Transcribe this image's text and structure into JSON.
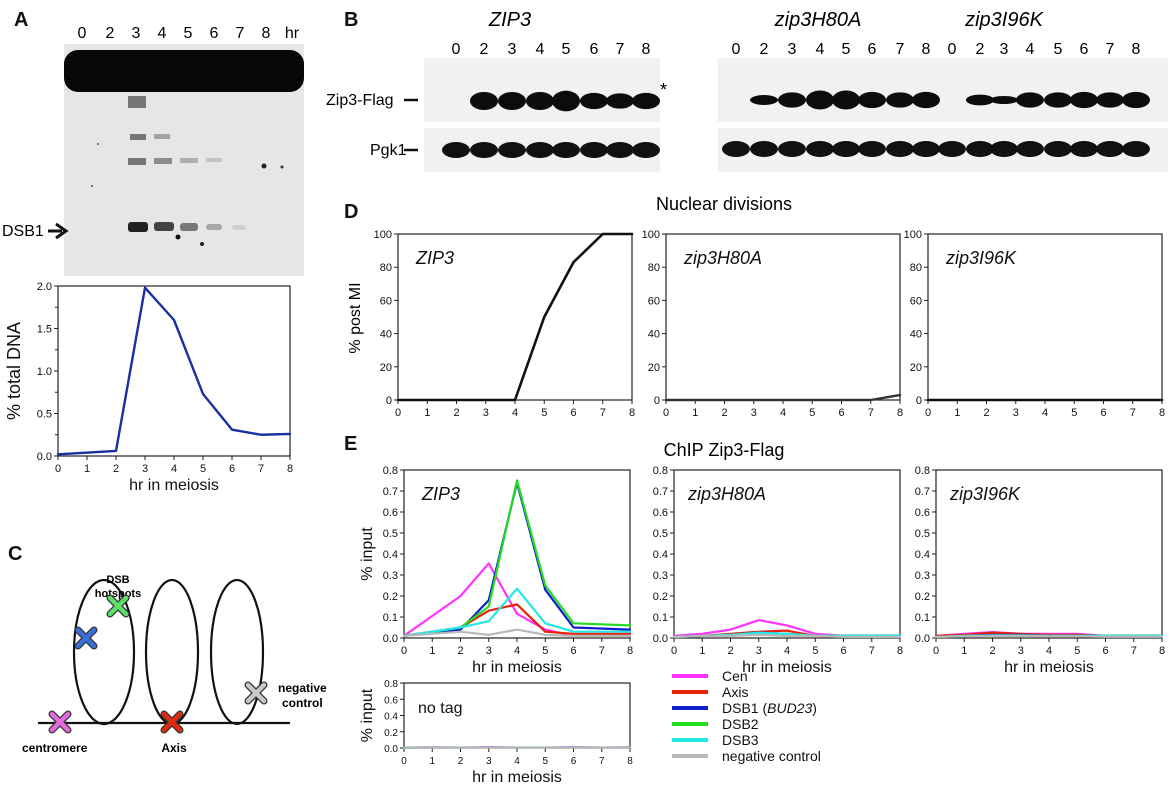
{
  "panels": {
    "A": {
      "label": "A",
      "gel_lanes": [
        "0",
        "2",
        "3",
        "4",
        "5",
        "6",
        "7",
        "8"
      ],
      "gel_unit": "hr",
      "dsb_label": "DSB1"
    },
    "B": {
      "label": "B",
      "blot_titles": [
        "ZIP3",
        "zip3H80A",
        "zip3I96K"
      ],
      "lanes_left": [
        "0",
        "2",
        "3",
        "4",
        "5",
        "6",
        "7",
        "8"
      ],
      "lanes_right": [
        "0",
        "2",
        "3",
        "4",
        "5",
        "6",
        "7",
        "8",
        "0",
        "2",
        "3",
        "4",
        "5",
        "6",
        "7",
        "8"
      ],
      "row1_label": "Zip3-Flag",
      "row2_label": "Pgk1",
      "star": "*"
    },
    "C": {
      "label": "C",
      "dsb_hotspots": [
        "DSB",
        "hotspots"
      ],
      "negative_control": [
        "negative",
        "control"
      ],
      "centromere": "centromere",
      "axis": "Axis",
      "colors": {
        "blue": "#3a6fd8",
        "green": "#5de06a",
        "magenta": "#e06ce0",
        "red": "#e02a10",
        "gray": "#c8c8c8"
      }
    },
    "D": {
      "label": "D",
      "title": "Nuclear divisions",
      "ylabel": "% post MI"
    },
    "E": {
      "label": "E",
      "title": "ChIP Zip3-Flag",
      "ylabel": "% input",
      "xlabel": "hr in meiosis",
      "legend": [
        {
          "name": "Cen",
          "color": "#ff33ff"
        },
        {
          "name": "Axis",
          "color": "#e8220a"
        },
        {
          "name": "DSB1",
          "name_italic": "BUD23",
          "color": "#1020c8"
        },
        {
          "name": "DSB2",
          "color": "#22dd22"
        },
        {
          "name": "DSB3",
          "color": "#22e8e8"
        },
        {
          "name": "negative control",
          "color": "#b8b8b8"
        }
      ]
    }
  },
  "chart_data": [
    {
      "id": "A-quant",
      "type": "line",
      "title": "",
      "xlabel": "hr in meiosis",
      "ylabel": "% total DNA",
      "xlim": [
        0,
        8
      ],
      "ylim": [
        0,
        2.0
      ],
      "xticks": [
        0,
        1,
        2,
        3,
        4,
        5,
        6,
        7,
        8
      ],
      "yticks": [
        0.0,
        0.5,
        1.0,
        1.5,
        2.0
      ],
      "series": [
        {
          "color": "#1a2fa0",
          "x": [
            0,
            2,
            3,
            4,
            5,
            6,
            7,
            8
          ],
          "y": [
            0.02,
            0.06,
            1.98,
            1.6,
            0.73,
            0.31,
            0.25,
            0.26
          ]
        }
      ]
    },
    {
      "id": "D-ZIP3",
      "type": "line",
      "title": "ZIP3",
      "ylabel": "% post MI",
      "xlim": [
        0,
        8
      ],
      "ylim": [
        0,
        100
      ],
      "xticks": [
        0,
        1,
        2,
        3,
        4,
        5,
        6,
        7,
        8
      ],
      "yticks": [
        0,
        20,
        40,
        60,
        80,
        100
      ],
      "series": [
        {
          "color": "#111111",
          "x": [
            0,
            1,
            2,
            3,
            4,
            5,
            6,
            7,
            8
          ],
          "y": [
            0,
            0,
            0,
            0,
            0,
            50,
            83,
            100,
            100
          ]
        }
      ]
    },
    {
      "id": "D-zip3H80A",
      "type": "line",
      "title": "zip3H80A",
      "xlim": [
        0,
        8
      ],
      "ylim": [
        0,
        100
      ],
      "xticks": [
        0,
        1,
        2,
        3,
        4,
        5,
        6,
        7,
        8
      ],
      "yticks": [
        0,
        20,
        40,
        60,
        80,
        100
      ],
      "series": [
        {
          "color": "#333333",
          "x": [
            0,
            1,
            2,
            3,
            4,
            5,
            6,
            7,
            8
          ],
          "y": [
            0,
            0,
            0,
            0,
            0,
            0,
            0,
            0,
            3
          ]
        }
      ]
    },
    {
      "id": "D-zip3I96K",
      "type": "line",
      "title": "zip3I96K",
      "xlim": [
        0,
        8
      ],
      "ylim": [
        0,
        100
      ],
      "xticks": [
        0,
        1,
        2,
        3,
        4,
        5,
        6,
        7,
        8
      ],
      "yticks": [
        0,
        20,
        40,
        60,
        80,
        100
      ],
      "series": [
        {
          "color": "#111111",
          "x": [
            0,
            1,
            2,
            3,
            4,
            5,
            6,
            7,
            8
          ],
          "y": [
            0,
            0,
            0,
            0,
            0,
            0,
            0,
            0,
            0
          ]
        }
      ]
    },
    {
      "id": "E-ZIP3",
      "type": "line",
      "title": "ZIP3",
      "xlabel": "hr in meiosis",
      "ylabel": "% input",
      "xlim": [
        0,
        8
      ],
      "ylim": [
        0,
        0.8
      ],
      "xticks": [
        0,
        1,
        2,
        3,
        4,
        5,
        6,
        7,
        8
      ],
      "yticks": [
        0.0,
        0.1,
        0.2,
        0.3,
        0.4,
        0.5,
        0.6,
        0.7,
        0.8
      ],
      "series": [
        {
          "name": "Cen",
          "color": "#ff33ff",
          "x": [
            0,
            2,
            3,
            4,
            5,
            6,
            8
          ],
          "y": [
            0.01,
            0.2,
            0.355,
            0.115,
            0.04,
            0.01,
            0.02
          ]
        },
        {
          "name": "Axis",
          "color": "#e8220a",
          "x": [
            0,
            2,
            3,
            4,
            5,
            6,
            8
          ],
          "y": [
            0.01,
            0.05,
            0.13,
            0.16,
            0.03,
            0.02,
            0.02
          ]
        },
        {
          "name": "DSB1",
          "color": "#1020c8",
          "x": [
            0,
            2,
            3,
            4,
            5,
            6,
            8
          ],
          "y": [
            0.01,
            0.04,
            0.18,
            0.74,
            0.23,
            0.05,
            0.04
          ]
        },
        {
          "name": "DSB2",
          "color": "#22dd22",
          "x": [
            0,
            2,
            3,
            4,
            5,
            6,
            8
          ],
          "y": [
            0.01,
            0.05,
            0.15,
            0.75,
            0.25,
            0.07,
            0.06
          ]
        },
        {
          "name": "DSB3",
          "color": "#22e8e8",
          "x": [
            0,
            2,
            3,
            4,
            5,
            6,
            8
          ],
          "y": [
            0.01,
            0.05,
            0.08,
            0.235,
            0.07,
            0.03,
            0.03
          ]
        },
        {
          "name": "negative control",
          "color": "#b8b8b8",
          "x": [
            0,
            2,
            3,
            4,
            5,
            6,
            8
          ],
          "y": [
            0.01,
            0.03,
            0.015,
            0.04,
            0.015,
            0.01,
            0.01
          ]
        }
      ]
    },
    {
      "id": "E-zip3H80A",
      "type": "line",
      "title": "zip3H80A",
      "xlabel": "hr in meiosis",
      "xlim": [
        0,
        8
      ],
      "ylim": [
        0,
        0.8
      ],
      "xticks": [
        0,
        1,
        2,
        3,
        4,
        5,
        6,
        7,
        8
      ],
      "yticks": [
        0.0,
        0.1,
        0.2,
        0.3,
        0.4,
        0.5,
        0.6,
        0.7,
        0.8
      ],
      "series": [
        {
          "name": "Cen",
          "color": "#ff33ff",
          "x": [
            0,
            1,
            2,
            3,
            4,
            5,
            6,
            8
          ],
          "y": [
            0.01,
            0.02,
            0.04,
            0.085,
            0.06,
            0.02,
            0.01,
            0.01
          ]
        },
        {
          "name": "Axis",
          "color": "#e8220a",
          "x": [
            0,
            1,
            2,
            3,
            4,
            5,
            6,
            8
          ],
          "y": [
            0.005,
            0.01,
            0.02,
            0.03,
            0.035,
            0.01,
            0.01,
            0.01
          ]
        },
        {
          "name": "DSB1",
          "color": "#1020c8",
          "x": [
            0,
            1,
            2,
            3,
            4,
            5,
            6,
            8
          ],
          "y": [
            0.005,
            0.01,
            0.015,
            0.025,
            0.02,
            0.01,
            0.01,
            0.01
          ]
        },
        {
          "name": "DSB2",
          "color": "#22dd22",
          "x": [
            0,
            1,
            2,
            3,
            4,
            5,
            6,
            8
          ],
          "y": [
            0.005,
            0.01,
            0.015,
            0.02,
            0.02,
            0.01,
            0.01,
            0.01
          ]
        },
        {
          "name": "DSB3",
          "color": "#22e8e8",
          "x": [
            0,
            1,
            2,
            3,
            4,
            5,
            6,
            8
          ],
          "y": [
            0.005,
            0.01,
            0.015,
            0.025,
            0.02,
            0.01,
            0.01,
            0.01
          ]
        },
        {
          "name": "negative control",
          "color": "#b8b8b8",
          "x": [
            0,
            1,
            2,
            3,
            4,
            5,
            6,
            8
          ],
          "y": [
            0.005,
            0.01,
            0.01,
            0.015,
            0.01,
            0.01,
            0.005,
            0.005
          ]
        }
      ]
    },
    {
      "id": "E-zip3I96K",
      "type": "line",
      "title": "zip3I96K",
      "xlabel": "hr in meiosis",
      "xlim": [
        0,
        8
      ],
      "ylim": [
        0,
        0.8
      ],
      "xticks": [
        0,
        1,
        2,
        3,
        4,
        5,
        6,
        7,
        8
      ],
      "yticks": [
        0.0,
        0.1,
        0.2,
        0.3,
        0.4,
        0.5,
        0.6,
        0.7,
        0.8
      ],
      "series": [
        {
          "name": "Cen",
          "color": "#ff33ff",
          "x": [
            0,
            1,
            2,
            3,
            4,
            5,
            6,
            8
          ],
          "y": [
            0.01,
            0.02,
            0.028,
            0.02,
            0.02,
            0.02,
            0.01,
            0.01
          ]
        },
        {
          "name": "Axis",
          "color": "#e8220a",
          "x": [
            0,
            1,
            2,
            3,
            4,
            5,
            6,
            8
          ],
          "y": [
            0.01,
            0.015,
            0.025,
            0.02,
            0.015,
            0.015,
            0.01,
            0.01
          ]
        },
        {
          "name": "DSB1",
          "color": "#1020c8",
          "x": [
            0,
            1,
            2,
            3,
            4,
            5,
            6,
            8
          ],
          "y": [
            0.005,
            0.01,
            0.015,
            0.015,
            0.01,
            0.01,
            0.01,
            0.01
          ]
        },
        {
          "name": "DSB2",
          "color": "#22dd22",
          "x": [
            0,
            1,
            2,
            3,
            4,
            5,
            6,
            8
          ],
          "y": [
            0.005,
            0.01,
            0.012,
            0.012,
            0.01,
            0.01,
            0.01,
            0.01
          ]
        },
        {
          "name": "DSB3",
          "color": "#22e8e8",
          "x": [
            0,
            1,
            2,
            3,
            4,
            5,
            6,
            8
          ],
          "y": [
            0.005,
            0.01,
            0.012,
            0.012,
            0.01,
            0.01,
            0.01,
            0.01
          ]
        },
        {
          "name": "negative control",
          "color": "#b8b8b8",
          "x": [
            0,
            1,
            2,
            3,
            4,
            5,
            6,
            8
          ],
          "y": [
            0.005,
            0.008,
            0.01,
            0.01,
            0.008,
            0.008,
            0.006,
            0.006
          ]
        }
      ]
    },
    {
      "id": "E-notag",
      "type": "line",
      "title": "no tag",
      "xlabel": "hr in meiosis",
      "ylabel": "% input",
      "xlim": [
        0,
        8
      ],
      "ylim": [
        0,
        0.8
      ],
      "xticks": [
        0,
        1,
        2,
        3,
        4,
        5,
        6,
        7,
        8
      ],
      "yticks": [
        0.0,
        0.2,
        0.4,
        0.6,
        0.8
      ],
      "series": [
        {
          "name": "Cen",
          "color": "#ff33ff",
          "x": [
            0,
            1,
            2,
            3,
            4,
            5,
            6,
            7,
            8
          ],
          "y": [
            0.008,
            0.01,
            0.008,
            0.012,
            0.008,
            0.008,
            0.012,
            0.008,
            0.01
          ]
        },
        {
          "name": "Axis",
          "color": "#e8220a",
          "x": [
            0,
            1,
            2,
            3,
            4,
            5,
            6,
            7,
            8
          ],
          "y": [
            0.005,
            0.006,
            0.006,
            0.006,
            0.006,
            0.006,
            0.006,
            0.006,
            0.006
          ]
        },
        {
          "name": "DSB1",
          "color": "#1020c8",
          "x": [
            0,
            1,
            2,
            3,
            4,
            5,
            6,
            7,
            8
          ],
          "y": [
            0.004,
            0.005,
            0.005,
            0.005,
            0.005,
            0.005,
            0.005,
            0.005,
            0.005
          ]
        },
        {
          "name": "DSB2",
          "color": "#22dd22",
          "x": [
            0,
            1,
            2,
            3,
            4,
            5,
            6,
            7,
            8
          ],
          "y": [
            0.004,
            0.005,
            0.005,
            0.005,
            0.005,
            0.005,
            0.005,
            0.005,
            0.005
          ]
        },
        {
          "name": "DSB3",
          "color": "#22e8e8",
          "x": [
            0,
            1,
            2,
            3,
            4,
            5,
            6,
            7,
            8
          ],
          "y": [
            0.004,
            0.005,
            0.005,
            0.005,
            0.005,
            0.005,
            0.005,
            0.005,
            0.005
          ]
        },
        {
          "name": "negative control",
          "color": "#b8b8b8",
          "x": [
            0,
            1,
            2,
            3,
            4,
            5,
            6,
            7,
            8
          ],
          "y": [
            0.003,
            0.004,
            0.004,
            0.004,
            0.004,
            0.004,
            0.004,
            0.004,
            0.004
          ]
        }
      ]
    }
  ]
}
